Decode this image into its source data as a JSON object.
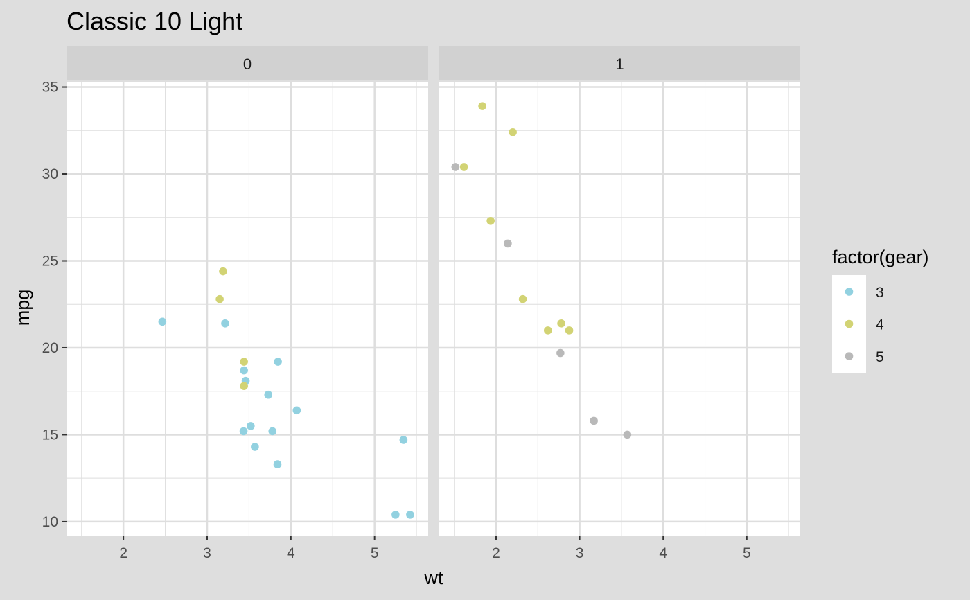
{
  "chart_data": {
    "type": "scatter",
    "title": "Classic 10 Light",
    "xlabel": "wt",
    "ylabel": "mpg",
    "xlim": [
      1.32,
      5.64
    ],
    "ylim": [
      9.2,
      35.3
    ],
    "xticks": [
      2,
      3,
      4,
      5
    ],
    "yticks": [
      10,
      15,
      20,
      25,
      30,
      35
    ],
    "grid": true,
    "legend": {
      "title": "factor(gear)",
      "position": "right",
      "entries": [
        {
          "label": "3",
          "color": "#92d1e0"
        },
        {
          "label": "4",
          "color": "#d2d374"
        },
        {
          "label": "5",
          "color": "#b9b9b9"
        }
      ]
    },
    "facets": [
      {
        "label": "0",
        "points": [
          {
            "x": 2.465,
            "y": 21.5,
            "group": "3"
          },
          {
            "x": 3.215,
            "y": 21.4,
            "group": "3"
          },
          {
            "x": 3.44,
            "y": 18.7,
            "group": "3"
          },
          {
            "x": 3.46,
            "y": 18.1,
            "group": "3"
          },
          {
            "x": 3.57,
            "y": 14.3,
            "group": "3"
          },
          {
            "x": 4.07,
            "y": 16.4,
            "group": "3"
          },
          {
            "x": 3.73,
            "y": 17.3,
            "group": "3"
          },
          {
            "x": 3.78,
            "y": 15.2,
            "group": "3"
          },
          {
            "x": 5.25,
            "y": 10.4,
            "group": "3"
          },
          {
            "x": 5.424,
            "y": 10.4,
            "group": "3"
          },
          {
            "x": 5.345,
            "y": 14.7,
            "group": "3"
          },
          {
            "x": 3.52,
            "y": 15.5,
            "group": "3"
          },
          {
            "x": 3.435,
            "y": 15.2,
            "group": "3"
          },
          {
            "x": 3.84,
            "y": 13.3,
            "group": "3"
          },
          {
            "x": 3.845,
            "y": 19.2,
            "group": "3"
          },
          {
            "x": 3.19,
            "y": 24.4,
            "group": "4"
          },
          {
            "x": 3.15,
            "y": 22.8,
            "group": "4"
          },
          {
            "x": 3.44,
            "y": 19.2,
            "group": "4"
          },
          {
            "x": 3.44,
            "y": 17.8,
            "group": "4"
          }
        ]
      },
      {
        "label": "1",
        "points": [
          {
            "x": 1.835,
            "y": 33.9,
            "group": "4"
          },
          {
            "x": 2.2,
            "y": 32.4,
            "group": "4"
          },
          {
            "x": 1.615,
            "y": 30.4,
            "group": "4"
          },
          {
            "x": 1.935,
            "y": 27.3,
            "group": "4"
          },
          {
            "x": 2.32,
            "y": 22.8,
            "group": "4"
          },
          {
            "x": 2.62,
            "y": 21.0,
            "group": "4"
          },
          {
            "x": 2.875,
            "y": 21.0,
            "group": "4"
          },
          {
            "x": 2.78,
            "y": 21.4,
            "group": "4"
          },
          {
            "x": 1.513,
            "y": 30.4,
            "group": "5"
          },
          {
            "x": 2.14,
            "y": 26.0,
            "group": "5"
          },
          {
            "x": 2.77,
            "y": 19.7,
            "group": "5"
          },
          {
            "x": 3.17,
            "y": 15.8,
            "group": "5"
          },
          {
            "x": 3.57,
            "y": 15.0,
            "group": "5"
          }
        ]
      }
    ]
  },
  "colors": {
    "background": "#dedede",
    "panel": "#ffffff",
    "strip": "#d1d1d1",
    "grid": "#dedede"
  }
}
